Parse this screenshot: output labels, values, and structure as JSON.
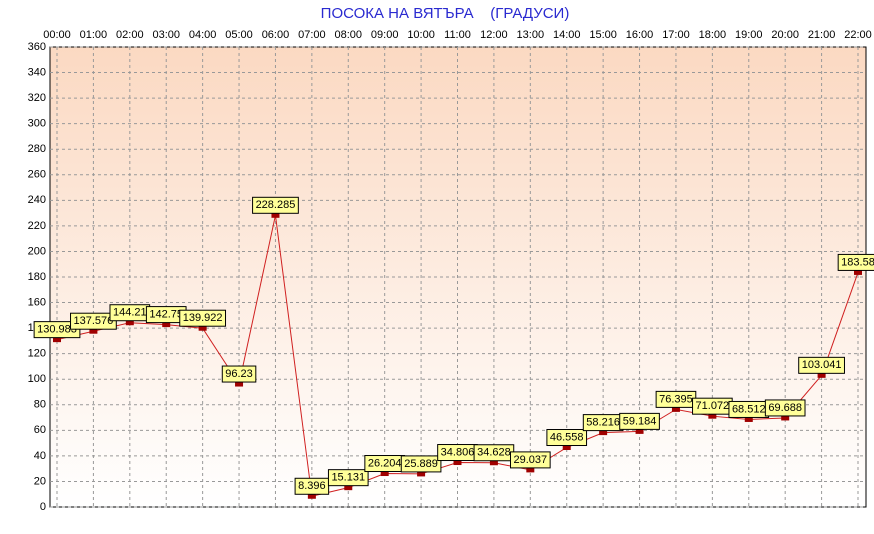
{
  "chart_data": {
    "type": "line",
    "title": "ПОСОКА НА ВЯТЪРА    (ГРАДУСИ)",
    "categories": [
      "00:00",
      "01:00",
      "02:00",
      "03:00",
      "04:00",
      "05:00",
      "06:00",
      "07:00",
      "08:00",
      "09:00",
      "10:00",
      "11:00",
      "12:00",
      "13:00",
      "14:00",
      "15:00",
      "16:00",
      "17:00",
      "18:00",
      "19:00",
      "20:00",
      "21:00",
      "22:00"
    ],
    "values": [
      130.983,
      137.576,
      144.21,
      142.75,
      139.922,
      96.23,
      228.285,
      8.396,
      15.131,
      26.204,
      25.889,
      34.806,
      34.628,
      29.037,
      46.558,
      58.216,
      59.184,
      76.395,
      71.072,
      68.512,
      69.688,
      103.041,
      183.58
    ],
    "color": "#d02020",
    "marker_color": "#a00000",
    "label_color": "#ffff99",
    "ylim": [
      0,
      360
    ],
    "yticks": [
      0,
      20,
      40,
      60,
      80,
      100,
      120,
      140,
      160,
      180,
      200,
      220,
      240,
      260,
      280,
      300,
      320,
      340,
      360
    ],
    "grid": true
  }
}
